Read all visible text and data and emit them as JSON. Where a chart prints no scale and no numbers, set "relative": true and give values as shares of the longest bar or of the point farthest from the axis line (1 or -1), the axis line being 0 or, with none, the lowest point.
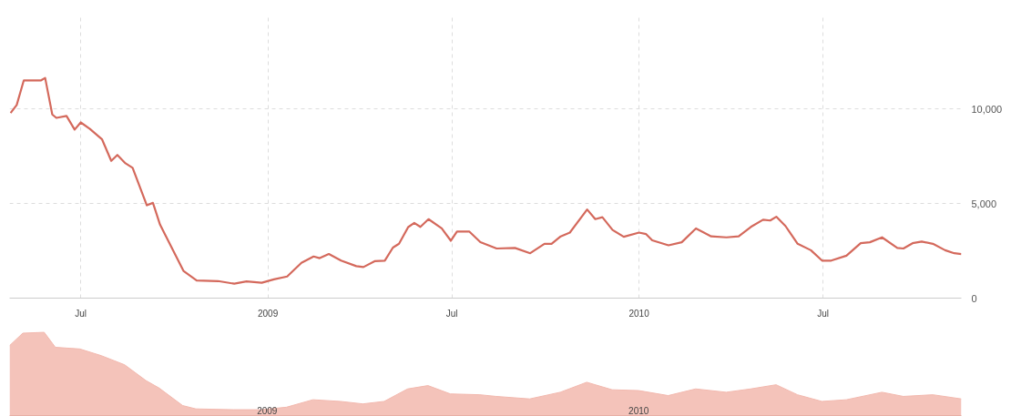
{
  "chart_data": [
    {
      "type": "line",
      "x": [
        "2008-04-23",
        "2008-04-29",
        "2008-05-06",
        "2008-05-23",
        "2008-05-27",
        "2008-06-03",
        "2008-06-07",
        "2008-06-17",
        "2008-06-25",
        "2008-07-01",
        "2008-07-10",
        "2008-07-22",
        "2008-07-31",
        "2008-08-06",
        "2008-08-14",
        "2008-08-21",
        "2008-09-04",
        "2008-09-10",
        "2008-09-17",
        "2008-10-10",
        "2008-10-23",
        "2008-11-13",
        "2008-11-29",
        "2008-12-11",
        "2008-12-26",
        "2009-01-07",
        "2009-01-20",
        "2009-02-03",
        "2009-02-15",
        "2009-02-21",
        "2009-03-02",
        "2009-03-14",
        "2009-03-29",
        "2009-04-05",
        "2009-04-16",
        "2009-04-26",
        "2009-05-04",
        "2009-05-10",
        "2009-05-19",
        "2009-05-25",
        "2009-05-31",
        "2009-06-08",
        "2009-06-21",
        "2009-06-30",
        "2009-07-06",
        "2009-07-18",
        "2009-07-29",
        "2009-08-14",
        "2009-09-01",
        "2009-09-16",
        "2009-09-30",
        "2009-10-07",
        "2009-10-16",
        "2009-10-25",
        "2009-11-11",
        "2009-11-19",
        "2009-11-26",
        "2009-12-06",
        "2009-12-17",
        "2010-01-01",
        "2010-01-08",
        "2010-01-14",
        "2010-01-30",
        "2010-02-12",
        "2010-02-26",
        "2010-03-13",
        "2010-03-28",
        "2010-04-09",
        "2010-04-21",
        "2010-05-03",
        "2010-05-10",
        "2010-05-16",
        "2010-05-25",
        "2010-06-06",
        "2010-06-19",
        "2010-06-30",
        "2010-07-09",
        "2010-07-24",
        "2010-08-07",
        "2010-08-16",
        "2010-08-28",
        "2010-09-12",
        "2010-09-18",
        "2010-09-27",
        "2010-10-06",
        "2010-10-17",
        "2010-10-29",
        "2010-11-07",
        "2010-11-14"
      ],
      "series": [
        {
          "color": "#d4695c",
          "values": [
            9780,
            10200,
            11500,
            11500,
            11630,
            9700,
            9520,
            9620,
            8900,
            9280,
            8940,
            8380,
            7250,
            7560,
            7120,
            6880,
            4900,
            5030,
            3880,
            1440,
            930,
            900,
            760,
            880,
            810,
            990,
            1140,
            1860,
            2200,
            2110,
            2330,
            1980,
            1690,
            1640,
            1950,
            1980,
            2670,
            2870,
            3750,
            3970,
            3760,
            4170,
            3680,
            3030,
            3520,
            3520,
            2960,
            2620,
            2650,
            2370,
            2870,
            2870,
            3260,
            3460,
            4680,
            4170,
            4270,
            3600,
            3240,
            3460,
            3380,
            3050,
            2790,
            2950,
            3680,
            3260,
            3210,
            3260,
            3760,
            4140,
            4100,
            4300,
            3810,
            2870,
            2530,
            1980,
            1980,
            2240,
            2900,
            2950,
            3210,
            2650,
            2620,
            2900,
            2990,
            2870,
            2530,
            2370,
            2330
          ]
        }
      ],
      "xlim": [
        "2008-04-22",
        "2010-11-14"
      ],
      "xticks": [
        {
          "value": "2008-07-01",
          "label": "Jul"
        },
        {
          "value": "2009-01-01",
          "label": "2009"
        },
        {
          "value": "2009-07-01",
          "label": "Jul"
        },
        {
          "value": "2010-01-01",
          "label": "2010"
        },
        {
          "value": "2010-07-01",
          "label": "Jul"
        }
      ],
      "ylim": [
        0,
        15000
      ],
      "yticks": [
        0,
        {
          "value": 5000,
          "label": "5,000"
        },
        {
          "value": 10000,
          "label": "10,000"
        }
      ],
      "grid": true,
      "line_style": "solid"
    },
    {
      "type": "area",
      "relative": true,
      "x": [
        "2008-04-23",
        "2008-05-06",
        "2008-05-27",
        "2008-06-07",
        "2008-07-01",
        "2008-07-22",
        "2008-08-14",
        "2008-09-04",
        "2008-09-17",
        "2008-10-10",
        "2008-10-23",
        "2008-11-29",
        "2008-12-26",
        "2009-01-20",
        "2009-02-15",
        "2009-03-14",
        "2009-04-05",
        "2009-04-26",
        "2009-05-19",
        "2009-06-08",
        "2009-06-30",
        "2009-07-29",
        "2009-08-14",
        "2009-09-16",
        "2009-10-16",
        "2009-11-11",
        "2009-12-06",
        "2010-01-01",
        "2010-01-30",
        "2010-02-26",
        "2010-03-28",
        "2010-04-21",
        "2010-05-16",
        "2010-06-06",
        "2010-06-30",
        "2010-07-24",
        "2010-08-28",
        "2010-09-18",
        "2010-10-17",
        "2010-11-14"
      ],
      "series": [
        {
          "color": "#f2b8ae",
          "values": [
            0.84,
            0.99,
            1.0,
            0.82,
            0.8,
            0.72,
            0.61,
            0.42,
            0.33,
            0.12,
            0.08,
            0.07,
            0.07,
            0.1,
            0.19,
            0.17,
            0.14,
            0.17,
            0.32,
            0.36,
            0.26,
            0.25,
            0.23,
            0.2,
            0.28,
            0.4,
            0.31,
            0.3,
            0.24,
            0.32,
            0.28,
            0.32,
            0.37,
            0.25,
            0.17,
            0.19,
            0.28,
            0.23,
            0.25,
            0.2
          ]
        }
      ],
      "xlim": [
        "2008-04-23",
        "2010-11-14"
      ],
      "xticks": [
        {
          "value": "2009-01-01",
          "label": "2009"
        },
        {
          "value": "2010-01-01",
          "label": "2010"
        }
      ]
    }
  ]
}
